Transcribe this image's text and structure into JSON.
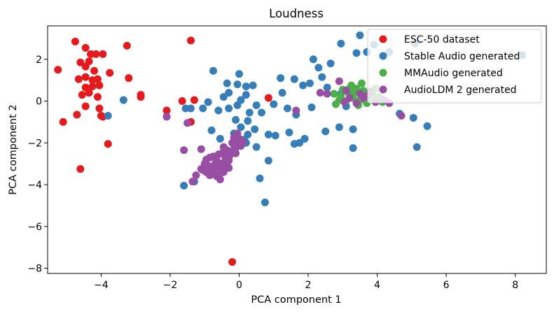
{
  "chart_data": {
    "type": "scatter",
    "title": "Loudness",
    "xlabel": "PCA component 1",
    "ylabel": "PCA component 2",
    "xlim": [
      -5.55,
      8.9
    ],
    "ylim": [
      -8.25,
      3.6
    ],
    "xticks": [
      -4,
      -2,
      0,
      2,
      4,
      6,
      8
    ],
    "yticks": [
      -8,
      -6,
      -4,
      -2,
      0,
      2
    ],
    "xtick_labels": [
      "−4",
      "−2",
      "0",
      "2",
      "4",
      "6",
      "8"
    ],
    "ytick_labels": [
      "−8",
      "−6",
      "−4",
      "−2",
      "0",
      "2"
    ],
    "grid": false,
    "legend_position": "top-right",
    "series": [
      {
        "name": "ESC-50 dataset",
        "color": "#e41a1c",
        "points": [
          [
            -4.75,
            2.85
          ],
          [
            -4.45,
            2.55
          ],
          [
            -4.3,
            2.25
          ],
          [
            -4.15,
            2.25
          ],
          [
            -3.95,
            2.25
          ],
          [
            -3.25,
            2.65
          ],
          [
            -4.6,
            1.85
          ],
          [
            -4.35,
            1.9
          ],
          [
            -4.45,
            1.65
          ],
          [
            -4.2,
            1.45
          ],
          [
            -5.25,
            1.5
          ],
          [
            -3.75,
            1.35
          ],
          [
            -4.65,
            1.05
          ],
          [
            -4.45,
            1.15
          ],
          [
            -4.25,
            1.0
          ],
          [
            -4.1,
            1.05
          ],
          [
            -3.2,
            1.1
          ],
          [
            -4.25,
            0.7
          ],
          [
            -4.05,
            0.75
          ],
          [
            -4.45,
            0.65
          ],
          [
            -4.55,
            0.3
          ],
          [
            -4.1,
            0.2
          ],
          [
            -4.35,
            0.4
          ],
          [
            -2.85,
            0.3
          ],
          [
            -2.85,
            0.2
          ],
          [
            -4.45,
            -0.25
          ],
          [
            -4.05,
            -0.35
          ],
          [
            -4.7,
            -0.65
          ],
          [
            -3.95,
            -0.75
          ],
          [
            -4.0,
            -0.7
          ],
          [
            -5.1,
            -1.0
          ],
          [
            -3.8,
            -2.05
          ],
          [
            -4.6,
            -3.25
          ],
          [
            -1.4,
            2.9
          ],
          [
            -1.65,
            0.0
          ],
          [
            -1.4,
            -1.0
          ],
          [
            -2.1,
            -0.45
          ],
          [
            -1.3,
            0.05
          ],
          [
            0.85,
            0.15
          ],
          [
            -0.2,
            -7.7
          ]
        ]
      },
      {
        "name": "Stable Audio generated",
        "color": "#377eb8",
        "points": [
          [
            -3.8,
            -0.7
          ],
          [
            -3.35,
            0.05
          ],
          [
            -1.55,
            -0.35
          ],
          [
            -1.4,
            -0.35
          ],
          [
            -0.75,
            1.45
          ],
          [
            -0.3,
            0.4
          ],
          [
            0.0,
            1.3
          ],
          [
            0.2,
            0.7
          ],
          [
            0.4,
            0.75
          ],
          [
            -0.05,
            -0.2
          ],
          [
            -0.3,
            -0.35
          ],
          [
            0.3,
            -0.55
          ],
          [
            -0.6,
            -0.45
          ],
          [
            -0.9,
            -0.05
          ],
          [
            -1.05,
            -0.35
          ],
          [
            -0.45,
            0.2
          ],
          [
            0.05,
            0.05
          ],
          [
            0.5,
            -0.2
          ],
          [
            0.65,
            -0.55
          ],
          [
            -0.1,
            -0.9
          ],
          [
            0.25,
            -0.95
          ],
          [
            0.05,
            -1.25
          ],
          [
            -0.8,
            -1.4
          ],
          [
            0.45,
            -1.35
          ],
          [
            0.25,
            -1.6
          ],
          [
            -0.15,
            -1.55
          ],
          [
            -0.55,
            -1.8
          ],
          [
            0.15,
            -1.85
          ],
          [
            0.85,
            -1.6
          ],
          [
            1.05,
            -1.65
          ],
          [
            0.5,
            -2.2
          ],
          [
            -0.3,
            -2.4
          ],
          [
            0.2,
            -2.0
          ],
          [
            0.85,
            -2.85
          ],
          [
            0.6,
            -3.7
          ],
          [
            0.75,
            -4.85
          ],
          [
            -1.6,
            -4.05
          ],
          [
            -1.3,
            -3.85
          ],
          [
            1.2,
            1.1
          ],
          [
            1.6,
            1.05
          ],
          [
            2.15,
            2.0
          ],
          [
            2.3,
            1.6
          ],
          [
            2.65,
            1.8
          ],
          [
            2.95,
            2.75
          ],
          [
            3.4,
            2.3
          ],
          [
            3.7,
            2.35
          ],
          [
            3.5,
            3.15
          ],
          [
            3.9,
            2.7
          ],
          [
            4.35,
            2.35
          ],
          [
            5.1,
            2.75
          ],
          [
            8.2,
            2.2
          ],
          [
            2.1,
            -0.3
          ],
          [
            2.05,
            0.85
          ],
          [
            1.85,
            0.75
          ],
          [
            1.65,
            -0.65
          ],
          [
            1.9,
            -1.8
          ],
          [
            2.5,
            -1.45
          ],
          [
            2.9,
            -1.25
          ],
          [
            3.3,
            -1.35
          ],
          [
            3.3,
            -2.25
          ],
          [
            4.65,
            -0.6
          ],
          [
            5.05,
            -0.8
          ],
          [
            5.15,
            -2.2
          ],
          [
            5.45,
            -1.2
          ],
          [
            3.1,
            -0.25
          ],
          [
            2.95,
            0.35
          ],
          [
            1.75,
            -2.0
          ],
          [
            1.6,
            -2.05
          ],
          [
            1.45,
            -1.5
          ],
          [
            1.25,
            0.4
          ],
          [
            1.0,
            -0.15
          ],
          [
            1.4,
            -0.35
          ],
          [
            2.4,
            1.15
          ],
          [
            2.55,
            0.65
          ],
          [
            -0.05,
            0.8
          ],
          [
            0.2,
            0.3
          ],
          [
            -0.35,
            0.85
          ],
          [
            3.6,
            0.1
          ]
        ]
      },
      {
        "name": "MMAudio generated",
        "color": "#4daf4a",
        "points": [
          [
            2.75,
            0.35
          ],
          [
            2.95,
            0.25
          ],
          [
            3.15,
            0.55
          ],
          [
            3.2,
            0.3
          ],
          [
            3.35,
            0.45
          ],
          [
            3.55,
            0.3
          ],
          [
            3.75,
            0.15
          ],
          [
            3.95,
            0.05
          ],
          [
            4.15,
            -0.05
          ],
          [
            3.3,
            0.15
          ],
          [
            3.5,
            0.05
          ],
          [
            3.7,
            -0.1
          ],
          [
            2.9,
            0.05
          ],
          [
            3.1,
            0.0
          ],
          [
            3.85,
            0.35
          ],
          [
            4.05,
            0.2
          ],
          [
            3.45,
            -0.2
          ],
          [
            3.6,
            0.5
          ],
          [
            3.0,
            0.55
          ],
          [
            3.25,
            0.75
          ],
          [
            3.55,
            0.85
          ],
          [
            3.95,
            0.6
          ],
          [
            2.8,
            -0.15
          ],
          [
            3.4,
            0.6
          ]
        ]
      },
      {
        "name": "AudioLDM 2 generated",
        "color": "#984ea3",
        "points": [
          [
            -2.1,
            -0.75
          ],
          [
            -1.5,
            -1.05
          ],
          [
            -1.6,
            -2.35
          ],
          [
            -1.1,
            -2.3
          ],
          [
            -1.0,
            -3.0
          ],
          [
            -1.1,
            -3.25
          ],
          [
            -0.9,
            -3.1
          ],
          [
            -0.75,
            -3.3
          ],
          [
            -0.55,
            -3.2
          ],
          [
            -0.65,
            -2.85
          ],
          [
            -0.45,
            -2.95
          ],
          [
            -0.3,
            -2.7
          ],
          [
            -0.2,
            -2.4
          ],
          [
            -0.15,
            -2.1
          ],
          [
            -0.1,
            -2.25
          ],
          [
            -0.05,
            -2.0
          ],
          [
            0.0,
            -1.8
          ],
          [
            0.1,
            -1.95
          ],
          [
            -0.35,
            -2.35
          ],
          [
            -0.25,
            -2.55
          ],
          [
            -0.5,
            -2.5
          ],
          [
            -0.6,
            -2.55
          ],
          [
            -0.75,
            -2.65
          ],
          [
            -0.85,
            -2.7
          ],
          [
            -0.95,
            -2.8
          ],
          [
            -0.7,
            -3.0
          ],
          [
            -0.6,
            -3.05
          ],
          [
            -0.4,
            -3.1
          ],
          [
            -0.45,
            -3.4
          ],
          [
            -0.3,
            -3.2
          ],
          [
            -0.85,
            -3.55
          ],
          [
            -0.65,
            -3.6
          ],
          [
            -0.55,
            -3.75
          ],
          [
            -0.75,
            -3.45
          ],
          [
            -0.95,
            -3.4
          ],
          [
            -1.25,
            -3.55
          ],
          [
            -1.35,
            -3.85
          ],
          [
            -0.45,
            -2.2
          ],
          [
            -0.2,
            -2.0
          ],
          [
            0.05,
            -2.15
          ],
          [
            -0.1,
            -2.5
          ],
          [
            -0.3,
            -2.85
          ],
          [
            -0.15,
            -1.75
          ],
          [
            -0.05,
            -1.55
          ],
          [
            -0.55,
            -3.45
          ],
          [
            -0.4,
            -2.7
          ],
          [
            -0.8,
            -3.2
          ],
          [
            -1.05,
            -3.3
          ],
          [
            1.65,
            -0.45
          ],
          [
            2.35,
            0.4
          ],
          [
            2.55,
            0.35
          ],
          [
            2.9,
            0.95
          ],
          [
            3.1,
            0.5
          ],
          [
            3.2,
            0.15
          ],
          [
            3.4,
            -0.1
          ],
          [
            3.6,
            0.15
          ],
          [
            3.8,
            0.45
          ],
          [
            3.95,
            -0.05
          ],
          [
            4.2,
            0.05
          ],
          [
            4.35,
            -0.1
          ],
          [
            4.7,
            -0.7
          ],
          [
            3.05,
            -0.05
          ],
          [
            3.5,
            0.35
          ],
          [
            3.7,
            0.25
          ]
        ]
      }
    ]
  }
}
